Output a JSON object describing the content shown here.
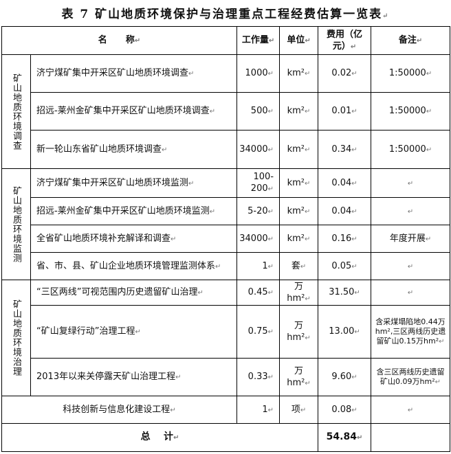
{
  "title": "表 7   矿山地质环境保护与治理重点工程经费估算一览表",
  "headers": {
    "name": "名      称",
    "amount": "工作量",
    "unit": "单位",
    "cost": "费用（亿元）",
    "note": "备注"
  },
  "groups": [
    {
      "category": "矿山地质环境调查",
      "rows": [
        {
          "name": "济宁煤矿集中开采区矿山地质环境调查",
          "amount": "1000",
          "unit": "km²",
          "cost": "0.02",
          "note": "1:50000"
        },
        {
          "name": "招远-莱州金矿集中开采区矿山地质环境调查",
          "amount": "500",
          "unit": "km²",
          "cost": "0.01",
          "note": "1:50000"
        },
        {
          "name": "新一轮山东省矿山地质环境调查",
          "amount": "34000",
          "unit": "km²",
          "cost": "0.34",
          "note": "1:50000"
        }
      ]
    },
    {
      "category": "矿山地质环境监测",
      "rows": [
        {
          "name": "济宁煤矿集中开采区矿山地质环境监测",
          "amount": "100-200",
          "unit": "km²",
          "cost": "0.04",
          "note": ""
        },
        {
          "name": "招远-莱州金矿集中开采区矿山地质环境监测",
          "amount": "5-20",
          "unit": "km²",
          "cost": "0.04",
          "note": ""
        },
        {
          "name": "全省矿山地质环境补充解译和调查",
          "amount": "34000",
          "unit": "km²",
          "cost": "0.16",
          "note": "年度开展"
        },
        {
          "name": "省、市、县、矿山企业地质环境管理监测体系",
          "amount": "1",
          "unit": "套",
          "cost": "0.05",
          "note": ""
        }
      ]
    },
    {
      "category": "矿山地质环境治理",
      "rows": [
        {
          "name": "“三区两线”可视范围内历史遗留矿山治理",
          "amount": "0.45",
          "unit": "万 hm²",
          "cost": "31.50",
          "note": ""
        },
        {
          "name": "“矿山复绿行动”治理工程",
          "amount": "0.75",
          "unit": "万 hm²",
          "cost": "13.00",
          "note": "含采煤塌陷地0.44万hm²,三区两线历史遗留矿山0.15万hm²"
        },
        {
          "name": "2013年以来关停露天矿山治理工程",
          "amount": "0.33",
          "unit": "万 hm²",
          "cost": "9.60",
          "note": "含三区两线历史遗留矿山0.09万hm²"
        }
      ]
    }
  ],
  "tech": {
    "name": "科技创新与信息化建设工程",
    "amount": "1",
    "unit": "项",
    "cost": "0.08",
    "note": ""
  },
  "total": {
    "label": "总    计",
    "cost": "54.84"
  }
}
